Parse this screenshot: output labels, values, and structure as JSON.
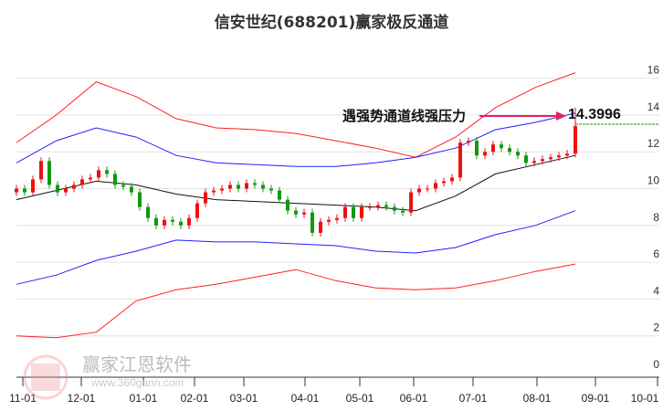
{
  "chart_data": {
    "type": "line",
    "title": "信安世纪(688201)赢家极反通道",
    "ylim": [
      0,
      16.5
    ],
    "yticks": [
      "0",
      "2",
      "4",
      "6",
      "8",
      "10",
      "12",
      "14",
      "16"
    ],
    "xticks": [
      "11-01",
      "12-01",
      "01-01",
      "02-01",
      "03-01",
      "04-01",
      "05-01",
      "06-01",
      "07-01",
      "08-01",
      "09-01",
      "10-01"
    ],
    "grid": true,
    "series": [
      {
        "name": "upper-outer",
        "color": "#ff2020",
        "values": [
          12.5,
          14.0,
          15.8,
          15.0,
          13.8,
          13.3,
          13.2,
          13.0,
          12.6,
          12.2,
          11.7,
          12.8,
          14.4,
          15.5,
          16.3
        ]
      },
      {
        "name": "upper-inner",
        "color": "#2020ff",
        "values": [
          11.4,
          12.6,
          13.3,
          12.8,
          11.8,
          11.4,
          11.3,
          11.2,
          11.2,
          11.4,
          11.7,
          12.2,
          13.2,
          13.6,
          14.1
        ]
      },
      {
        "name": "middle",
        "color": "#111111",
        "values": [
          9.4,
          9.9,
          10.4,
          10.2,
          9.7,
          9.4,
          9.3,
          9.2,
          9.1,
          9.0,
          8.8,
          9.6,
          10.8,
          11.3,
          11.8
        ]
      },
      {
        "name": "lower-inner",
        "color": "#2020ff",
        "values": [
          4.8,
          5.3,
          6.1,
          6.6,
          7.2,
          7.1,
          7.1,
          7.0,
          6.9,
          6.6,
          6.5,
          6.8,
          7.5,
          8.0,
          8.8
        ]
      },
      {
        "name": "lower-outer",
        "color": "#ff2020",
        "values": [
          2.0,
          1.9,
          2.2,
          3.9,
          4.5,
          4.8,
          5.2,
          5.6,
          5.0,
          4.6,
          4.5,
          4.6,
          5.0,
          5.5,
          5.9
        ]
      }
    ],
    "candles": {
      "up_color": "#ee1111",
      "down_color": "#119911",
      "closes": [
        10.0,
        9.8,
        10.5,
        11.5,
        10.2,
        9.8,
        10.0,
        10.2,
        10.5,
        10.6,
        11.0,
        10.8,
        10.2,
        10.1,
        9.8,
        9.0,
        8.4,
        8.0,
        8.3,
        8.2,
        8.0,
        8.4,
        9.2,
        9.8,
        9.9,
        10.0,
        10.2,
        10.0,
        10.3,
        10.2,
        10.0,
        9.9,
        9.4,
        8.8,
        8.6,
        8.7,
        7.6,
        8.2,
        8.3,
        8.4,
        9.0,
        8.4,
        9.0,
        9.0,
        9.1,
        9.0,
        8.8,
        8.7,
        9.8,
        10.0,
        10.0,
        10.3,
        10.4,
        10.6,
        12.5,
        12.6,
        11.8,
        12.0,
        12.4,
        12.2,
        12.0,
        11.8,
        11.4,
        11.5,
        11.6,
        11.7,
        11.8,
        11.9,
        13.4
      ],
      "last_high": 14.4
    },
    "reference_line": {
      "value": 13.5,
      "color": "#119911"
    },
    "annotation": {
      "text": "遇强势通道线强压力",
      "value": "14.3996",
      "arrow_color": "#e0206a"
    }
  },
  "watermark": {
    "name": "赢家江恩软件",
    "url": "www.360gann.com",
    "logo": "江赢恩家"
  }
}
